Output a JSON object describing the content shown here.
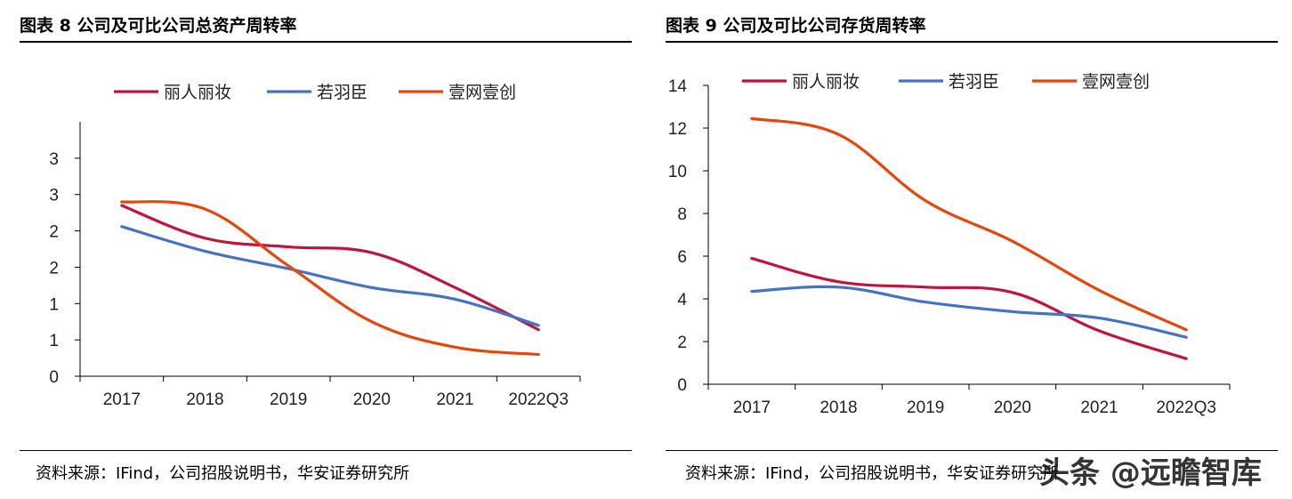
{
  "panels": [
    {
      "title": "图表 8  公司及可比公司总资产周转率",
      "source": "资料来源：IFind，公司招股说明书，华安证券研究所"
    },
    {
      "title": "图表 9  公司及可比公司存货周转率",
      "source": "资料来源：IFind，公司招股说明书，华安证券研究所"
    }
  ],
  "watermark": "头条 @远瞻智库",
  "chart_data": [
    {
      "type": "line",
      "categories": [
        "2017",
        "2018",
        "2019",
        "2020",
        "2021",
        "2022Q3"
      ],
      "ylim": [
        0,
        3.5
      ],
      "yticks": [
        0,
        0.5,
        1,
        1.5,
        2,
        2.5,
        3
      ],
      "ytick_labels": [
        "0",
        "1",
        "1",
        "2",
        "2",
        "3",
        "3"
      ],
      "legend_position": "top",
      "series": [
        {
          "name": "丽人丽妆",
          "color": "#C0143C",
          "values": [
            2.35,
            1.9,
            1.78,
            1.7,
            1.22,
            0.64
          ]
        },
        {
          "name": "若羽臣",
          "color": "#4472C4",
          "values": [
            2.06,
            1.72,
            1.48,
            1.22,
            1.06,
            0.7
          ]
        },
        {
          "name": "壹网壹创",
          "color": "#E8450A",
          "values": [
            2.4,
            2.3,
            1.52,
            0.75,
            0.4,
            0.3
          ]
        }
      ]
    },
    {
      "type": "line",
      "categories": [
        "2017",
        "2018",
        "2019",
        "2020",
        "2021",
        "2022Q3"
      ],
      "ylim": [
        0,
        14
      ],
      "yticks": [
        0,
        2,
        4,
        6,
        8,
        10,
        12,
        14
      ],
      "ytick_labels": [
        "0",
        "2",
        "4",
        "6",
        "8",
        "10",
        "12",
        "14"
      ],
      "legend_position": "top",
      "series": [
        {
          "name": "丽人丽妆",
          "color": "#C0143C",
          "values": [
            5.9,
            4.8,
            4.55,
            4.3,
            2.5,
            1.2
          ]
        },
        {
          "name": "若羽臣",
          "color": "#4472C4",
          "values": [
            4.35,
            4.55,
            3.85,
            3.4,
            3.1,
            2.2
          ]
        },
        {
          "name": "壹网壹创",
          "color": "#E8450A",
          "values": [
            12.45,
            11.7,
            8.6,
            6.7,
            4.4,
            2.55
          ]
        }
      ]
    }
  ]
}
